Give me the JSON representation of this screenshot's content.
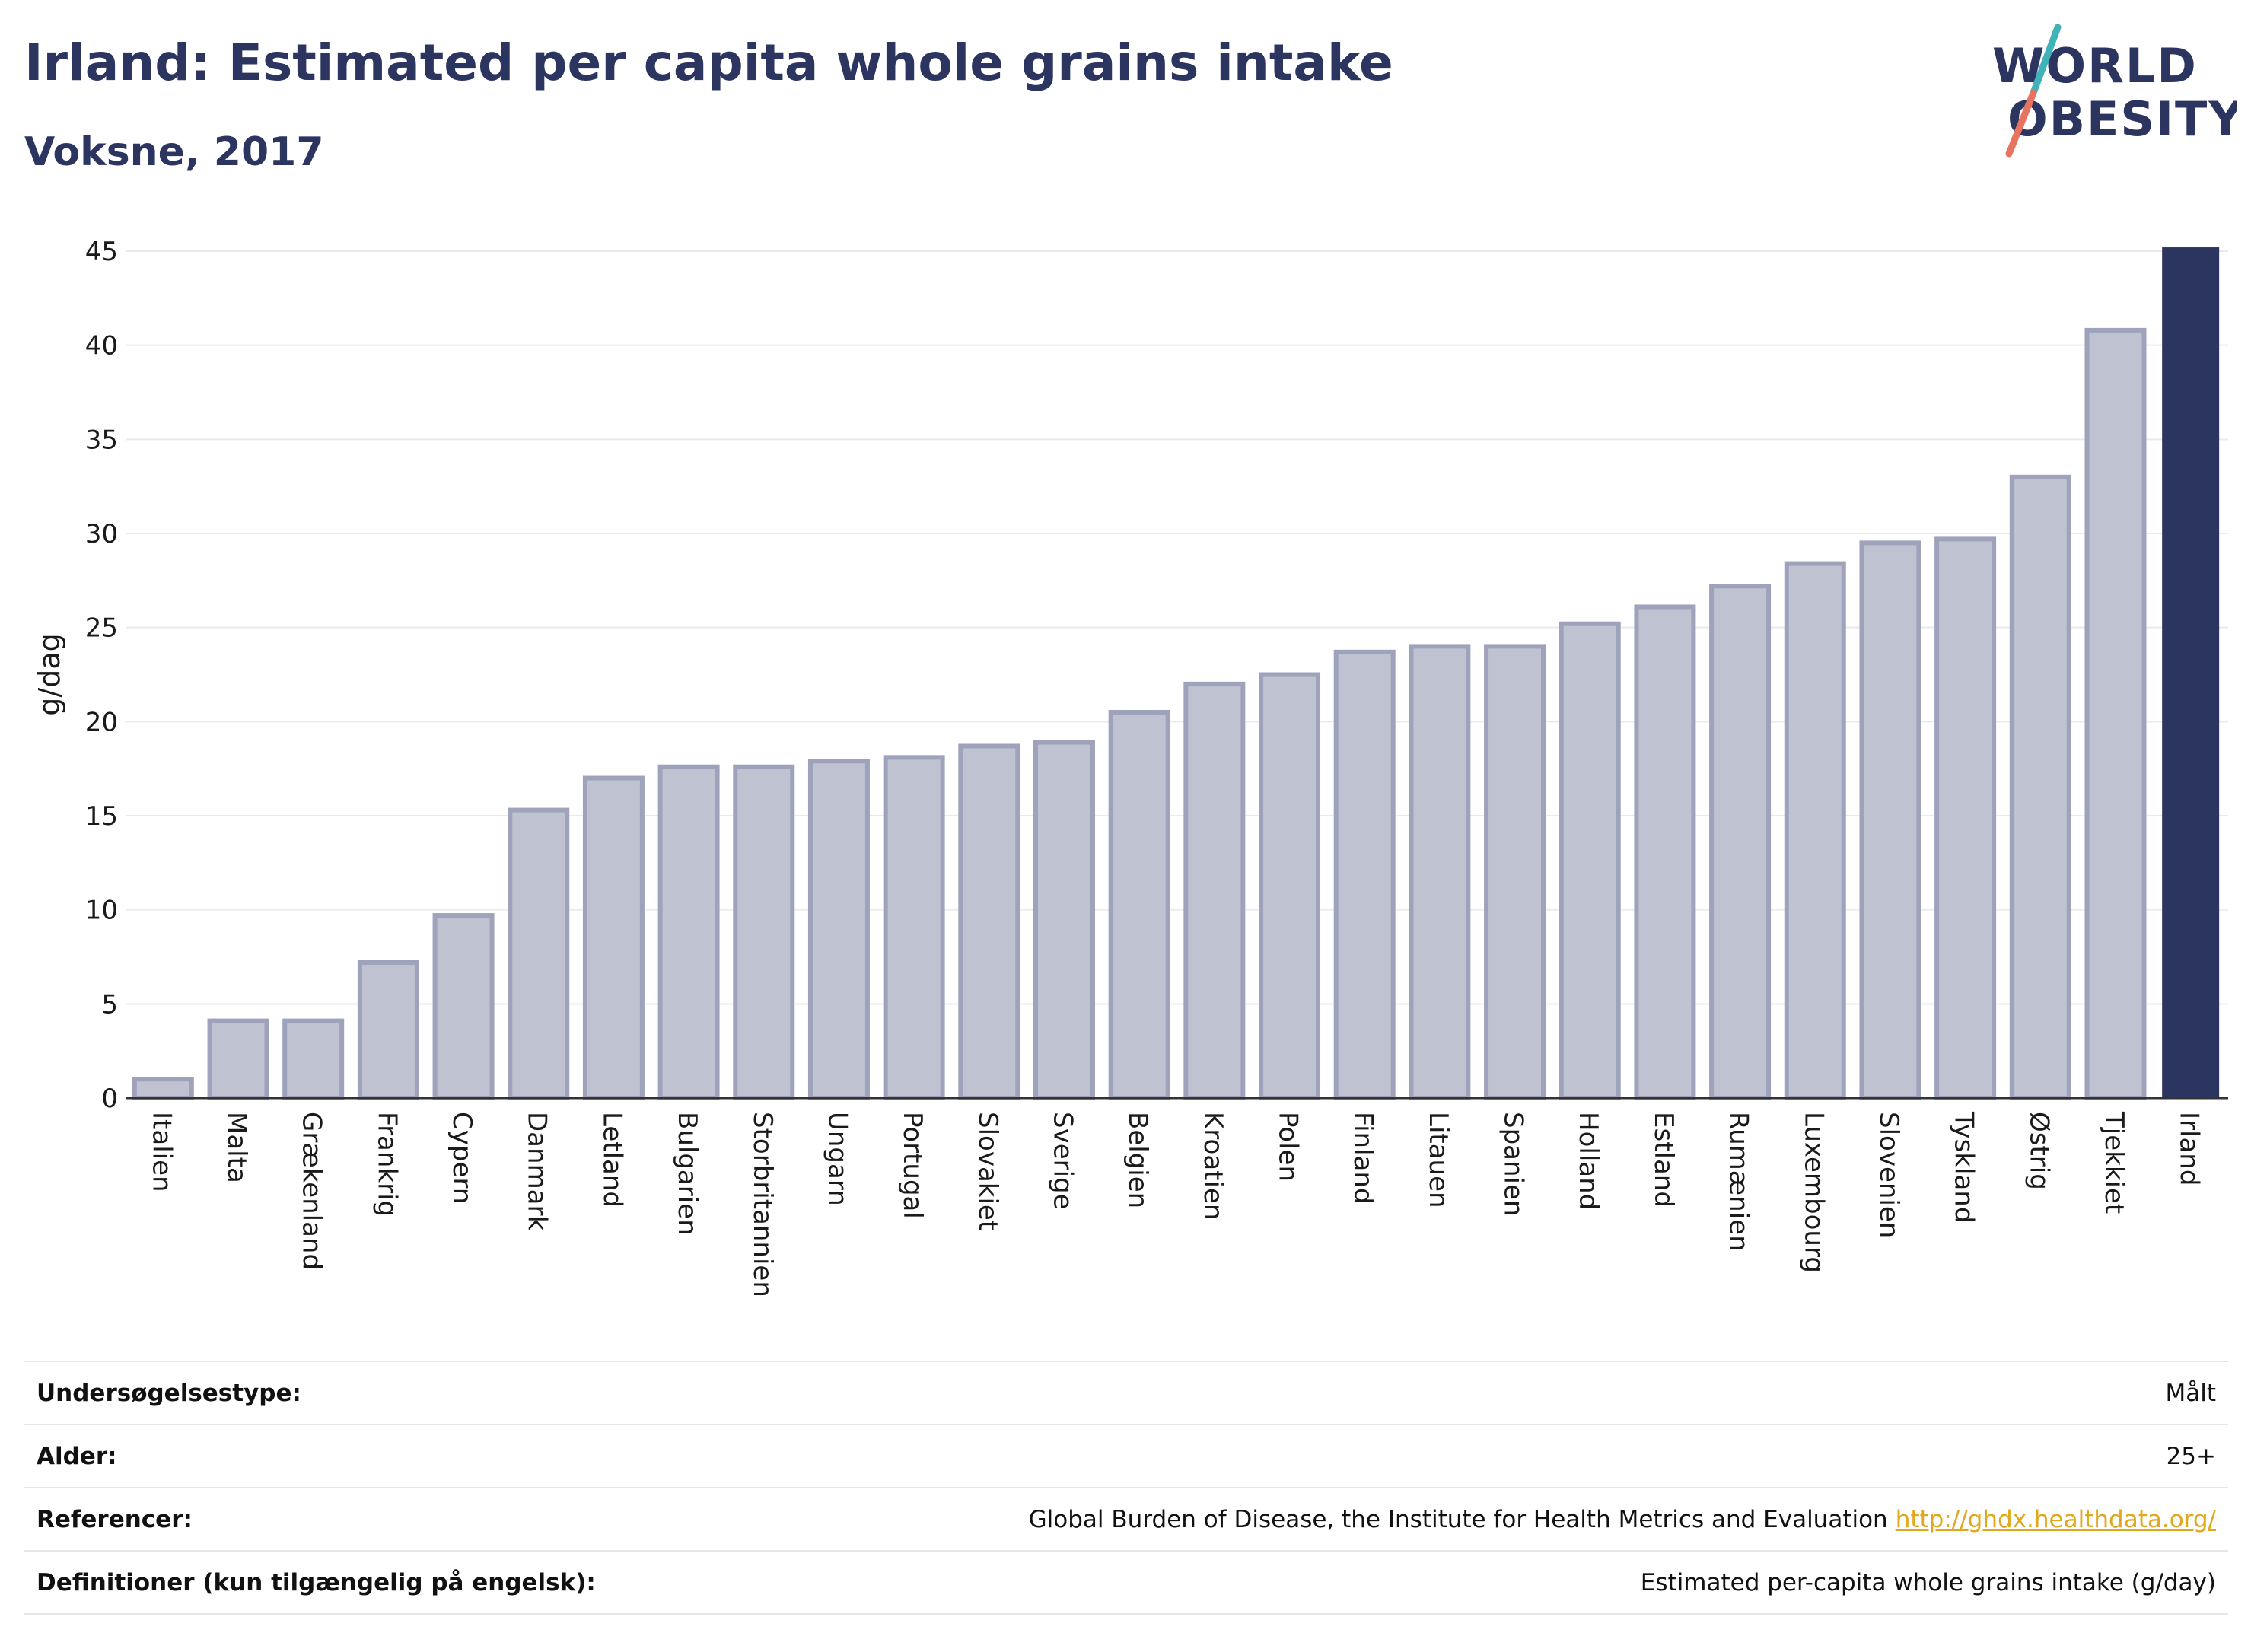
{
  "header": {
    "title": "Irland: Estimated per capita whole grains intake",
    "subtitle": "Voksne, 2017"
  },
  "logo": {
    "line1": "WORLD",
    "line2": "OBESITY",
    "colors": {
      "text": "#2b3560",
      "slash_top": "#3fb3b8",
      "slash_bottom": "#e8735f"
    }
  },
  "chart_data": {
    "type": "bar",
    "title": "Irland: Estimated per capita whole grains intake",
    "subtitle": "Voksne, 2017",
    "ylabel": "g/dag",
    "xlabel": "",
    "ylim": [
      0,
      45
    ],
    "yticks": [
      0,
      5,
      10,
      15,
      20,
      25,
      30,
      35,
      40,
      45
    ],
    "grid": true,
    "highlight": "Irland",
    "colors": {
      "bar": "#bfc2d0",
      "bar_border": "#9ea3bb",
      "highlight": "#2b3560"
    },
    "categories": [
      "Italien",
      "Malta",
      "Grækenland",
      "Frankrig",
      "Cypern",
      "Danmark",
      "Letland",
      "Bulgarien",
      "Storbritannien",
      "Ungarn",
      "Portugal",
      "Slovakiet",
      "Sverige",
      "Belgien",
      "Kroatien",
      "Polen",
      "Finland",
      "Litauen",
      "Spanien",
      "Holland",
      "Estland",
      "Rumænien",
      "Luxembourg",
      "Slovenien",
      "Tyskland",
      "Østrig",
      "Tjekkiet",
      "Irland"
    ],
    "values": [
      1.0,
      4.1,
      4.1,
      7.2,
      9.7,
      15.3,
      17.0,
      17.6,
      17.6,
      17.9,
      18.1,
      18.7,
      18.9,
      20.5,
      22.0,
      22.5,
      23.7,
      24.0,
      24.0,
      25.2,
      26.1,
      27.2,
      28.4,
      29.5,
      29.7,
      33.0,
      40.8,
      45.2
    ]
  },
  "info": {
    "rows": [
      {
        "label": "Undersøgelsestype:",
        "value": "Målt"
      },
      {
        "label": "Alder:",
        "value": "25+"
      },
      {
        "label": "Referencer:",
        "value": "Global Burden of Disease, the Institute for Health Metrics and Evaluation",
        "link": "http://ghdx.healthdata.org/"
      },
      {
        "label": "Definitioner (kun tilgængelig på engelsk):",
        "value": "Estimated per-capita whole grains intake (g/day)"
      }
    ]
  }
}
